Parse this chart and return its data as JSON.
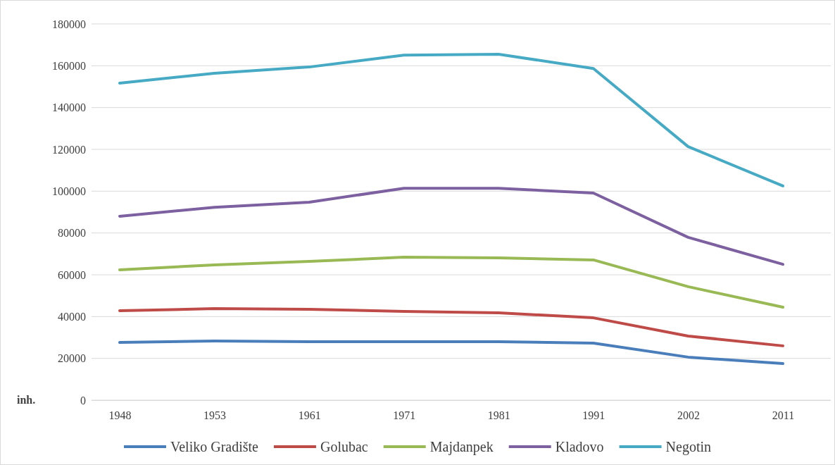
{
  "chart_data": {
    "type": "line",
    "ylabel": "inh.",
    "categories": [
      "1948",
      "1953",
      "1961",
      "1971",
      "1981",
      "1991",
      "2002",
      "2011"
    ],
    "series": [
      {
        "name": "Veliko Gradište",
        "color": "#4a7ebb",
        "values": [
          27600,
          28300,
          28000,
          28000,
          28000,
          27300,
          20600,
          17500
        ]
      },
      {
        "name": "Golubac",
        "color": "#be4b48",
        "values": [
          42800,
          43800,
          43500,
          42500,
          41800,
          39400,
          30700,
          26000
        ]
      },
      {
        "name": "Majdanpek",
        "color": "#98b954",
        "values": [
          62400,
          64700,
          66400,
          68400,
          68100,
          67100,
          54300,
          44500
        ]
      },
      {
        "name": "Kladovo",
        "color": "#7d60a0",
        "values": [
          88000,
          92300,
          94700,
          101400,
          101400,
          99100,
          77900,
          65000
        ]
      },
      {
        "name": "Negotin",
        "color": "#46aac5",
        "values": [
          151700,
          156400,
          159400,
          165100,
          165500,
          158700,
          121300,
          102500
        ]
      }
    ],
    "ylim": [
      0,
      180000
    ],
    "yticks": [
      0,
      20000,
      40000,
      60000,
      80000,
      100000,
      120000,
      140000,
      160000,
      180000
    ],
    "grid": "y",
    "legend": "bottom",
    "marker": "none",
    "line_style": "solid"
  }
}
